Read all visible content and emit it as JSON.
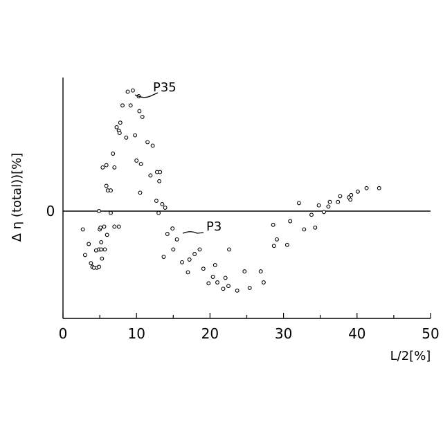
{
  "chart_data": {
    "type": "scatter",
    "title": "",
    "xlabel": "L/2[%]",
    "ylabel": "Δ η (total))[%]",
    "xlim": [
      0,
      50
    ],
    "ylim": [
      -1,
      1
    ],
    "x_ticks": [
      0,
      10,
      20,
      30,
      40,
      50
    ],
    "x_tick_labels": [
      "0",
      "10",
      "20",
      "30",
      "40",
      "50"
    ],
    "y_tick_labels": [
      "0"
    ],
    "y_ticks": [
      0
    ],
    "grid": false,
    "series": [
      {
        "marker": "open-circle",
        "points": [
          [
            2.7,
            -0.2
          ],
          [
            3.0,
            -0.48
          ],
          [
            3.5,
            -0.36
          ],
          [
            3.8,
            -0.57
          ],
          [
            4.0,
            -0.61
          ],
          [
            4.2,
            -0.62
          ],
          [
            4.6,
            -0.62
          ],
          [
            4.9,
            -0.61
          ],
          [
            4.5,
            -0.43
          ],
          [
            4.9,
            -0.42
          ],
          [
            5.2,
            -0.42
          ],
          [
            5.7,
            -0.42
          ],
          [
            5.3,
            -0.52
          ],
          [
            5.2,
            -0.34
          ],
          [
            5.0,
            -0.2
          ],
          [
            5.1,
            -0.18
          ],
          [
            4.9,
            0.0
          ],
          [
            5.4,
            0.38
          ],
          [
            5.6,
            -0.17
          ],
          [
            6.0,
            -0.26
          ],
          [
            5.9,
            0.22
          ],
          [
            5.9,
            0.4
          ],
          [
            6.1,
            0.18
          ],
          [
            6.5,
            0.18
          ],
          [
            6.5,
            -0.02
          ],
          [
            6.8,
            0.5
          ],
          [
            7.0,
            -0.17
          ],
          [
            7.0,
            0.38
          ],
          [
            7.3,
            0.73
          ],
          [
            7.6,
            0.7
          ],
          [
            7.7,
            0.68
          ],
          [
            7.6,
            -0.17
          ],
          [
            7.8,
            0.77
          ],
          [
            8.1,
            0.92
          ],
          [
            8.6,
            0.64
          ],
          [
            8.8,
            1.04
          ],
          [
            9.2,
            0.92
          ],
          [
            9.5,
            1.05
          ],
          [
            9.8,
            0.66
          ],
          [
            10.0,
            0.44
          ],
          [
            10.3,
            1.0
          ],
          [
            10.4,
            0.87
          ],
          [
            10.6,
            0.41
          ],
          [
            10.5,
            0.16
          ],
          [
            10.8,
            0.82
          ],
          [
            11.5,
            0.6
          ],
          [
            11.9,
            0.31
          ],
          [
            12.2,
            0.57
          ],
          [
            12.7,
            0.09
          ],
          [
            12.8,
            0.34
          ],
          [
            13.2,
            0.34
          ],
          [
            13.1,
            0.26
          ],
          [
            13.0,
            -0.02
          ],
          [
            13.5,
            0.06
          ],
          [
            13.9,
            0.03
          ],
          [
            13.7,
            -0.5
          ],
          [
            14.2,
            -0.25
          ],
          [
            14.9,
            -0.19
          ],
          [
            15.0,
            -0.42
          ],
          [
            15.5,
            -0.31
          ],
          [
            16.2,
            -0.56
          ],
          [
            17.0,
            -0.67
          ],
          [
            17.2,
            -0.53
          ],
          [
            17.9,
            -0.47
          ],
          [
            18.6,
            -0.42
          ],
          [
            19.1,
            -0.63
          ],
          [
            19.8,
            -0.79
          ],
          [
            20.4,
            -0.72
          ],
          [
            20.7,
            -0.59
          ],
          [
            21.0,
            -0.78
          ],
          [
            21.8,
            -0.85
          ],
          [
            22.1,
            -0.73
          ],
          [
            22.5,
            -0.82
          ],
          [
            22.6,
            -0.42
          ],
          [
            23.7,
            -0.87
          ],
          [
            24.7,
            -0.66
          ],
          [
            25.4,
            -0.84
          ],
          [
            26.9,
            -0.66
          ],
          [
            27.3,
            -0.78
          ],
          [
            28.6,
            -0.15
          ],
          [
            28.7,
            -0.38
          ],
          [
            29.1,
            -0.31
          ],
          [
            30.5,
            -0.37
          ],
          [
            30.9,
            -0.11
          ],
          [
            32.1,
            0.07
          ],
          [
            32.8,
            -0.2
          ],
          [
            33.8,
            -0.04
          ],
          [
            34.3,
            -0.18
          ],
          [
            34.8,
            0.05
          ],
          [
            35.5,
            -0.01
          ],
          [
            36.1,
            0.04
          ],
          [
            36.3,
            0.08
          ],
          [
            37.4,
            0.08
          ],
          [
            37.7,
            0.13
          ],
          [
            38.9,
            0.12
          ],
          [
            39.1,
            0.1
          ],
          [
            39.2,
            0.14
          ],
          [
            40.1,
            0.17
          ],
          [
            41.3,
            0.2
          ],
          [
            43.0,
            0.2
          ]
        ]
      }
    ],
    "annotations": [
      {
        "label": "P35",
        "x": 9.5,
        "y": 1.05
      },
      {
        "label": "P3",
        "x": 16.2,
        "y": -0.21
      }
    ]
  }
}
